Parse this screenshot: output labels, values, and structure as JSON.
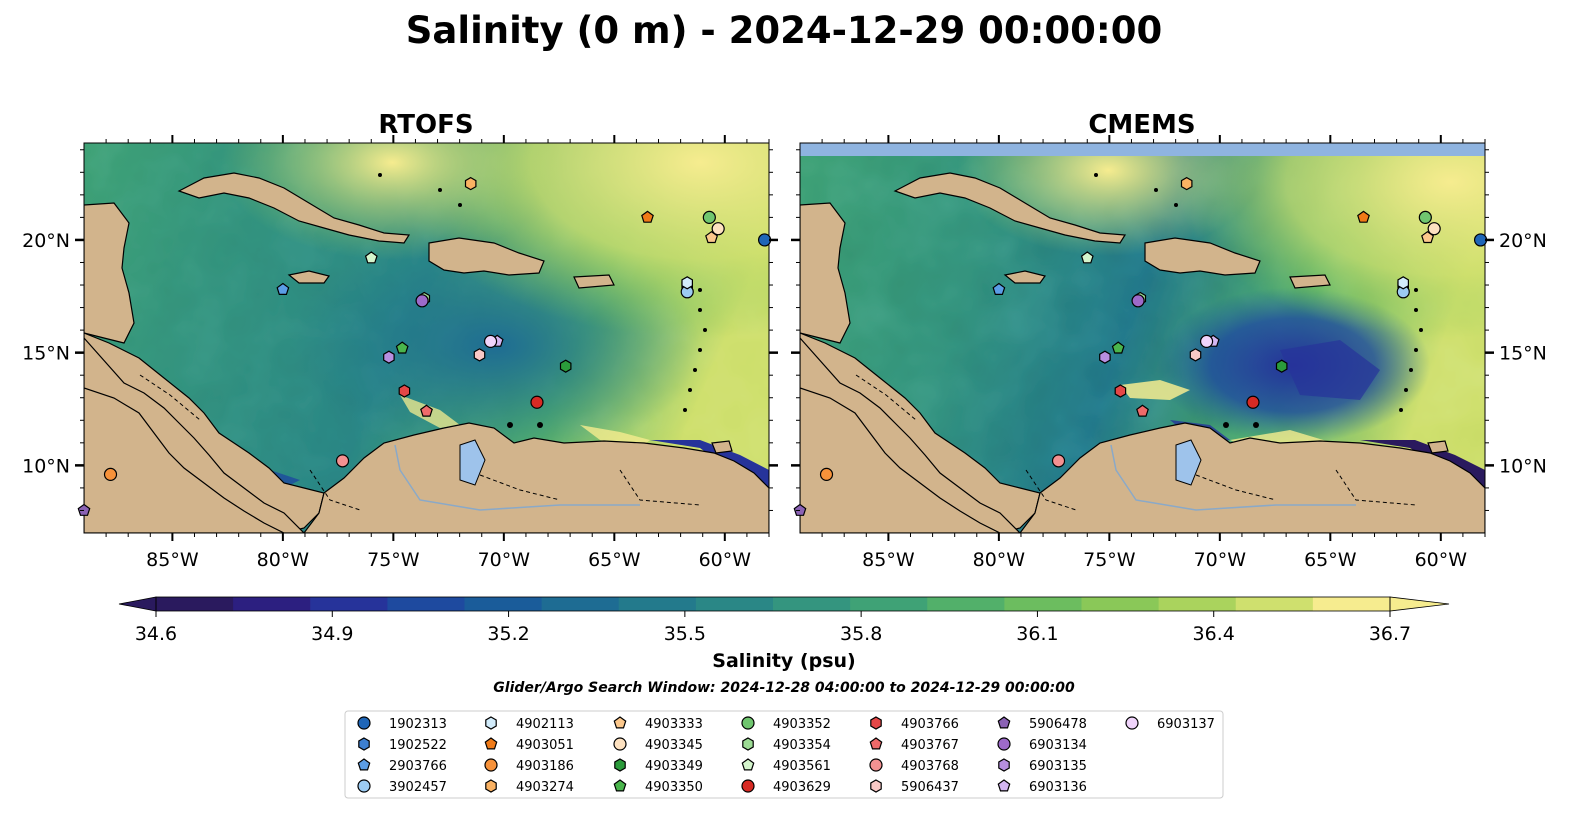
{
  "title": "Salinity (0 m) - 2024-12-29 00:00:00",
  "panels": [
    {
      "name": "RTOFS"
    },
    {
      "name": "CMEMS"
    }
  ],
  "colorbar": {
    "label": "Salinity (psu)",
    "ticks": [
      "34.6",
      "34.9",
      "35.2",
      "35.5",
      "35.8",
      "36.1",
      "36.4",
      "36.7"
    ],
    "min": 34.6,
    "max": 36.7,
    "colors": [
      "#2a1a5e",
      "#2c1f80",
      "#26339a",
      "#1e4a9f",
      "#1a5c9a",
      "#1e6c93",
      "#237a8c",
      "#2a8786",
      "#34957f",
      "#3fa276",
      "#52b06a",
      "#6cbd5f",
      "#8ac858",
      "#aad35d",
      "#cfe06e",
      "#f6ec8f"
    ]
  },
  "axes": {
    "lon_ticks": [
      "85°W",
      "80°W",
      "75°W",
      "70°W",
      "65°W",
      "60°W"
    ],
    "lat_ticks": [
      "10°N",
      "15°N",
      "20°N"
    ]
  },
  "search_window": "Glider/Argo Search Window: 2024-12-28 04:00:00 to 2024-12-29 00:00:00",
  "chart_data": {
    "type": "heatmap",
    "title": "Salinity (0 m) - 2024-12-29 00:00:00",
    "variable": "Salinity (psu)",
    "depth_m": 0,
    "time": "2024-12-29 00:00:00",
    "panels": [
      "RTOFS",
      "CMEMS"
    ],
    "lon_range": [
      -89,
      -58
    ],
    "lat_range": [
      7,
      24.3
    ],
    "colorbar_range": [
      34.6,
      36.7
    ],
    "x_ticks": [
      "85°W",
      "80°W",
      "75°W",
      "70°W",
      "65°W",
      "60°W"
    ],
    "y_ticks": [
      "10°N",
      "15°N",
      "20°N"
    ],
    "search_window": "Glider/Argo Search Window: 2024-12-28 04:00:00 to 2024-12-29 00:00:00",
    "floats": [
      {
        "id": "1902313",
        "marker": "circle",
        "color": "#1f66b8",
        "lon": -58.2,
        "lat": 20.0
      },
      {
        "id": "1902522",
        "marker": "hexagon",
        "color": "#3d7fcf",
        "lon": -61.7,
        "lat": 18.0
      },
      {
        "id": "2903766",
        "marker": "pentagon",
        "color": "#5b9de6",
        "lon": -80.0,
        "lat": 17.8
      },
      {
        "id": "3902457",
        "marker": "circle",
        "color": "#9ccbf2",
        "lon": -61.7,
        "lat": 17.7
      },
      {
        "id": "4902113",
        "marker": "hexagon",
        "color": "#d2ecfb",
        "lon": -61.7,
        "lat": 18.1
      },
      {
        "id": "4903051",
        "marker": "pentagon",
        "color": "#f07a17",
        "lon": -63.5,
        "lat": 21.0
      },
      {
        "id": "4903186",
        "marker": "circle",
        "color": "#f7923a",
        "lon": -87.8,
        "lat": 9.6
      },
      {
        "id": "4903274",
        "marker": "hexagon",
        "color": "#fab263",
        "lon": -71.5,
        "lat": 22.5
      },
      {
        "id": "4903333",
        "marker": "pentagon",
        "color": "#fcc88c",
        "lon": -60.6,
        "lat": 20.1
      },
      {
        "id": "4903345",
        "marker": "circle",
        "color": "#fde1c0",
        "lon": -60.3,
        "lat": 20.5
      },
      {
        "id": "4903349",
        "marker": "hexagon",
        "color": "#2b9b3b",
        "lon": -67.2,
        "lat": 14.4
      },
      {
        "id": "4903350",
        "marker": "pentagon",
        "color": "#4ab54c",
        "lon": -74.6,
        "lat": 15.2
      },
      {
        "id": "4903352",
        "marker": "circle",
        "color": "#70c66f",
        "lon": -60.7,
        "lat": 21.0
      },
      {
        "id": "4903354",
        "marker": "hexagon",
        "color": "#9ddc95",
        "lon": -73.6,
        "lat": 17.4
      },
      {
        "id": "4903561",
        "marker": "pentagon",
        "color": "#d4f5cc",
        "lon": -76.0,
        "lat": 19.2
      },
      {
        "id": "4903629",
        "marker": "circle",
        "color": "#d72a24",
        "lon": -68.5,
        "lat": 12.8
      },
      {
        "id": "4903766",
        "marker": "hexagon",
        "color": "#e54747",
        "lon": -74.5,
        "lat": 13.3
      },
      {
        "id": "4903767",
        "marker": "pentagon",
        "color": "#ef6a6a",
        "lon": -73.5,
        "lat": 12.4
      },
      {
        "id": "4903768",
        "marker": "circle",
        "color": "#f39191",
        "lon": -77.3,
        "lat": 10.2
      },
      {
        "id": "5906437",
        "marker": "hexagon",
        "color": "#f9c9c6",
        "lon": -71.1,
        "lat": 14.9
      },
      {
        "id": "5906478",
        "marker": "pentagon",
        "color": "#8b62b5",
        "lon": -89.0,
        "lat": 8.0
      },
      {
        "id": "6903134",
        "marker": "circle",
        "color": "#9d6ac9",
        "lon": -73.7,
        "lat": 17.3
      },
      {
        "id": "6903135",
        "marker": "hexagon",
        "color": "#b78fe0",
        "lon": -75.2,
        "lat": 14.8
      },
      {
        "id": "6903136",
        "marker": "pentagon",
        "color": "#d4b6f2",
        "lon": -70.3,
        "lat": 15.5
      },
      {
        "id": "6903137",
        "marker": "circle",
        "color": "#f0d4fb",
        "lon": -70.6,
        "lat": 15.5
      }
    ]
  }
}
